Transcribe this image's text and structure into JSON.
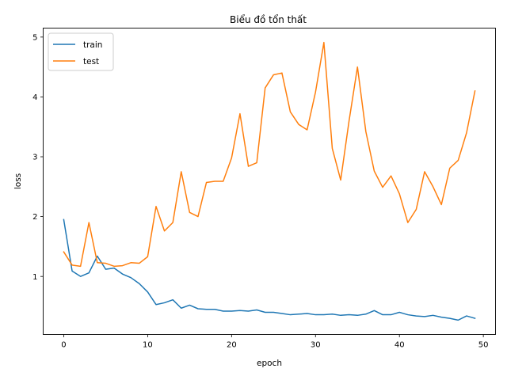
{
  "chart_data": {
    "type": "line",
    "title": "Biểu đồ tổn thất",
    "xlabel": "epoch",
    "ylabel": "loss",
    "xlim": [
      -2.45,
      51.45
    ],
    "ylim": [
      0.03,
      5.15
    ],
    "xticks": [
      0,
      10,
      20,
      30,
      40,
      50
    ],
    "yticks": [
      1,
      2,
      3,
      4,
      5
    ],
    "grid": false,
    "legend_position": "top-left",
    "x": [
      0,
      1,
      2,
      3,
      4,
      5,
      6,
      7,
      8,
      9,
      10,
      11,
      12,
      13,
      14,
      15,
      16,
      17,
      18,
      19,
      20,
      21,
      22,
      23,
      24,
      25,
      26,
      27,
      28,
      29,
      30,
      31,
      32,
      33,
      34,
      35,
      36,
      37,
      38,
      39,
      40,
      41,
      42,
      43,
      44,
      45,
      46,
      47,
      48,
      49
    ],
    "series": [
      {
        "name": "train",
        "color": "#1f77b4",
        "values": [
          1.95,
          1.09,
          1.0,
          1.06,
          1.34,
          1.12,
          1.14,
          1.04,
          0.98,
          0.88,
          0.74,
          0.53,
          0.56,
          0.61,
          0.47,
          0.52,
          0.46,
          0.45,
          0.45,
          0.42,
          0.42,
          0.43,
          0.42,
          0.44,
          0.4,
          0.4,
          0.38,
          0.36,
          0.37,
          0.38,
          0.36,
          0.36,
          0.37,
          0.35,
          0.36,
          0.35,
          0.37,
          0.43,
          0.36,
          0.36,
          0.4,
          0.36,
          0.34,
          0.33,
          0.35,
          0.32,
          0.3,
          0.27,
          0.34,
          0.3
        ]
      },
      {
        "name": "test",
        "color": "#ff7f0e",
        "values": [
          1.41,
          1.19,
          1.17,
          1.9,
          1.23,
          1.22,
          1.17,
          1.18,
          1.23,
          1.22,
          1.33,
          2.17,
          1.76,
          1.9,
          2.75,
          2.07,
          2.0,
          2.57,
          2.59,
          2.59,
          2.98,
          3.72,
          2.84,
          2.9,
          4.15,
          4.37,
          4.4,
          3.75,
          3.54,
          3.45,
          4.08,
          4.91,
          3.14,
          2.61,
          3.6,
          4.5,
          3.42,
          2.76,
          2.49,
          2.68,
          2.38,
          1.9,
          2.12,
          2.75,
          2.5,
          2.2,
          2.81,
          2.94,
          3.4,
          4.1
        ]
      }
    ]
  }
}
